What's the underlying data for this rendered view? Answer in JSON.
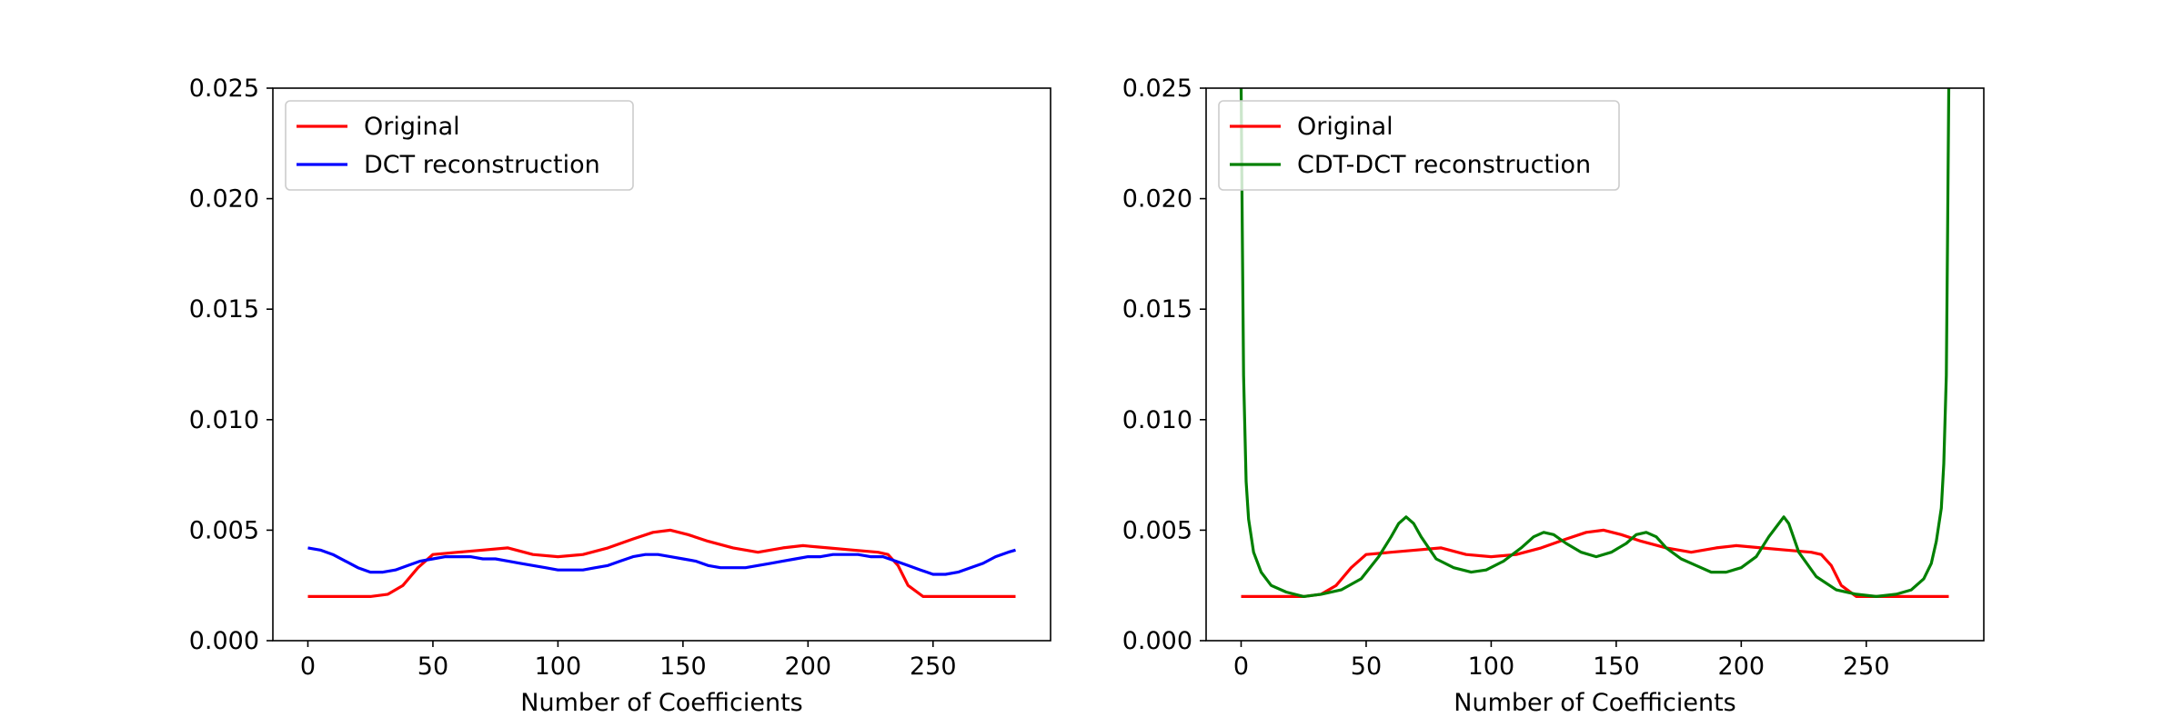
{
  "chart_data": [
    {
      "type": "line",
      "xlabel": "Number of Coefficients",
      "ylabel": "",
      "xlim": [
        -14,
        297
      ],
      "ylim": [
        0,
        0.025
      ],
      "xticks": [
        0,
        50,
        100,
        150,
        200,
        250
      ],
      "yticks": [
        0.0,
        0.005,
        0.01,
        0.015,
        0.02,
        0.025
      ],
      "ytick_labels": [
        "0.000",
        "0.005",
        "0.010",
        "0.015",
        "0.020",
        "0.025"
      ],
      "grid": false,
      "legend_position": "top-left",
      "series": [
        {
          "name": "Original",
          "color": "#ff0000",
          "x": [
            0,
            25,
            32,
            38,
            44,
            50,
            60,
            70,
            80,
            90,
            100,
            110,
            120,
            130,
            138,
            145,
            152,
            160,
            170,
            180,
            190,
            198,
            208,
            218,
            228,
            232,
            236,
            240,
            246,
            255,
            270,
            283
          ],
          "y": [
            0.002,
            0.002,
            0.0021,
            0.0025,
            0.0033,
            0.0039,
            0.004,
            0.0041,
            0.0042,
            0.0039,
            0.0038,
            0.0039,
            0.0042,
            0.0046,
            0.0049,
            0.005,
            0.0048,
            0.0045,
            0.0042,
            0.004,
            0.0042,
            0.0043,
            0.0042,
            0.0041,
            0.004,
            0.0039,
            0.0034,
            0.0025,
            0.002,
            0.002,
            0.002,
            0.002
          ]
        },
        {
          "name": "DCT reconstruction",
          "color": "#0000ff",
          "x": [
            0,
            5,
            10,
            15,
            20,
            25,
            30,
            35,
            40,
            45,
            50,
            55,
            60,
            65,
            70,
            75,
            80,
            85,
            90,
            95,
            100,
            105,
            110,
            115,
            120,
            125,
            130,
            135,
            140,
            145,
            150,
            155,
            160,
            165,
            170,
            175,
            180,
            185,
            190,
            195,
            200,
            205,
            210,
            215,
            220,
            225,
            230,
            235,
            240,
            245,
            250,
            255,
            260,
            265,
            270,
            275,
            280,
            283
          ],
          "y": [
            0.0042,
            0.0041,
            0.0039,
            0.0036,
            0.0033,
            0.0031,
            0.0031,
            0.0032,
            0.0034,
            0.0036,
            0.0037,
            0.0038,
            0.0038,
            0.0038,
            0.0037,
            0.0037,
            0.0036,
            0.0035,
            0.0034,
            0.0033,
            0.0032,
            0.0032,
            0.0032,
            0.0033,
            0.0034,
            0.0036,
            0.0038,
            0.0039,
            0.0039,
            0.0038,
            0.0037,
            0.0036,
            0.0034,
            0.0033,
            0.0033,
            0.0033,
            0.0034,
            0.0035,
            0.0036,
            0.0037,
            0.0038,
            0.0038,
            0.0039,
            0.0039,
            0.0039,
            0.0038,
            0.0038,
            0.0036,
            0.0034,
            0.0032,
            0.003,
            0.003,
            0.0031,
            0.0033,
            0.0035,
            0.0038,
            0.004,
            0.0041
          ]
        }
      ]
    },
    {
      "type": "line",
      "xlabel": "Number of Coefficients",
      "ylabel": "",
      "xlim": [
        -14,
        297
      ],
      "ylim": [
        0,
        0.025
      ],
      "xticks": [
        0,
        50,
        100,
        150,
        200,
        250
      ],
      "yticks": [
        0.0,
        0.005,
        0.01,
        0.015,
        0.02,
        0.025
      ],
      "ytick_labels": [
        "0.000",
        "0.005",
        "0.010",
        "0.015",
        "0.020",
        "0.025"
      ],
      "grid": false,
      "legend_position": "top-left",
      "series": [
        {
          "name": "Original",
          "color": "#ff0000",
          "x": [
            0,
            25,
            32,
            38,
            44,
            50,
            60,
            70,
            80,
            90,
            100,
            110,
            120,
            130,
            138,
            145,
            152,
            160,
            170,
            180,
            190,
            198,
            208,
            218,
            228,
            232,
            236,
            240,
            246,
            255,
            270,
            283
          ],
          "y": [
            0.002,
            0.002,
            0.0021,
            0.0025,
            0.0033,
            0.0039,
            0.004,
            0.0041,
            0.0042,
            0.0039,
            0.0038,
            0.0039,
            0.0042,
            0.0046,
            0.0049,
            0.005,
            0.0048,
            0.0045,
            0.0042,
            0.004,
            0.0042,
            0.0043,
            0.0042,
            0.0041,
            0.004,
            0.0039,
            0.0034,
            0.0025,
            0.002,
            0.002,
            0.002,
            0.002
          ]
        },
        {
          "name": "CDT-DCT reconstruction",
          "color": "#008000",
          "x": [
            0,
            0.5,
            1,
            2,
            3,
            5,
            8,
            12,
            18,
            25,
            32,
            40,
            48,
            55,
            60,
            63,
            66,
            69,
            72,
            78,
            85,
            92,
            98,
            105,
            112,
            117,
            121,
            125,
            130,
            136,
            142,
            148,
            154,
            158,
            162,
            166,
            170,
            176,
            182,
            188,
            194,
            200,
            206,
            211,
            215,
            217,
            219,
            223,
            230,
            238,
            246,
            254,
            262,
            268,
            273,
            276,
            278,
            280,
            281,
            282,
            282.5,
            283
          ],
          "y": [
            0.025,
            0.018,
            0.012,
            0.0072,
            0.0055,
            0.004,
            0.0031,
            0.0025,
            0.0022,
            0.002,
            0.0021,
            0.0023,
            0.0028,
            0.0038,
            0.0047,
            0.0053,
            0.0056,
            0.0053,
            0.0047,
            0.0037,
            0.0033,
            0.0031,
            0.0032,
            0.0036,
            0.0042,
            0.0047,
            0.0049,
            0.0048,
            0.0044,
            0.004,
            0.0038,
            0.004,
            0.0044,
            0.0048,
            0.0049,
            0.0047,
            0.0042,
            0.0037,
            0.0034,
            0.0031,
            0.0031,
            0.0033,
            0.0038,
            0.0047,
            0.0053,
            0.0056,
            0.0053,
            0.004,
            0.0029,
            0.0023,
            0.0021,
            0.002,
            0.0021,
            0.0023,
            0.0028,
            0.0035,
            0.0045,
            0.006,
            0.008,
            0.012,
            0.018,
            0.025
          ]
        }
      ]
    }
  ]
}
